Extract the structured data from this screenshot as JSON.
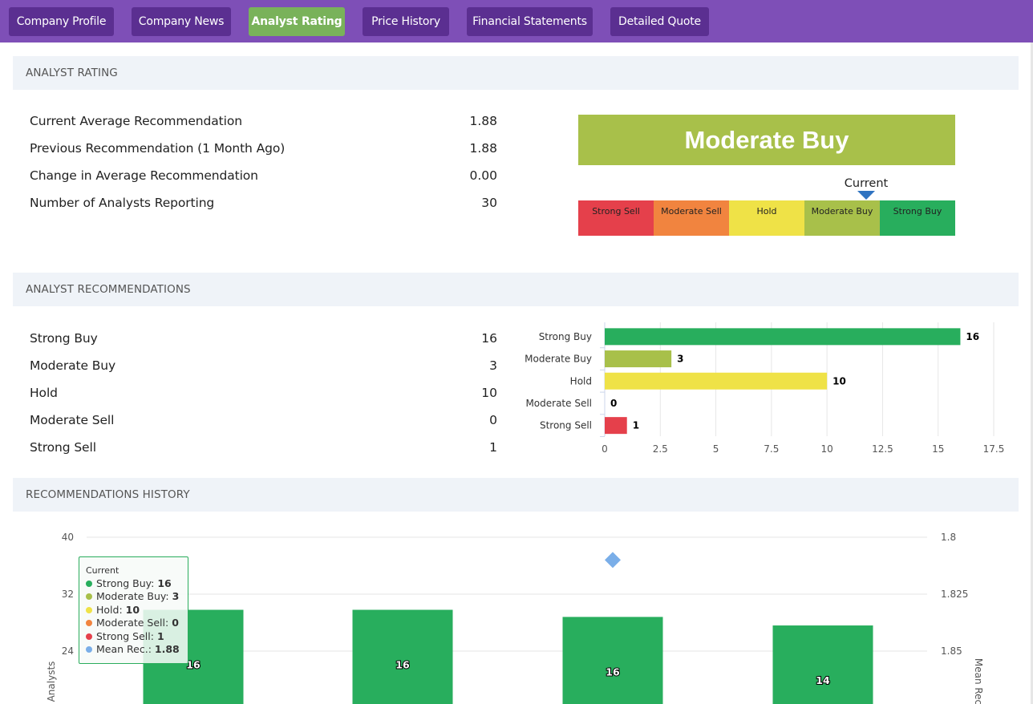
{
  "nav": {
    "tabs": [
      {
        "label": "Company Profile",
        "active": false
      },
      {
        "label": "Company News",
        "active": false
      },
      {
        "label": "Analyst Rating",
        "active": true
      },
      {
        "label": "Price History",
        "active": false
      },
      {
        "label": "Financial Statements",
        "active": false
      },
      {
        "label": "Detailed Quote",
        "active": false
      }
    ]
  },
  "analyst_rating": {
    "header": "ANALYST RATING",
    "rows": [
      {
        "label": "Current Average Recommendation",
        "value": "1.88"
      },
      {
        "label": "Previous Recommendation (1 Month Ago)",
        "value": "1.88"
      },
      {
        "label": "Change in Average Recommendation",
        "value": "0.00"
      },
      {
        "label": "Number of Analysts Reporting",
        "value": "30"
      }
    ],
    "rating_label": "Moderate Buy",
    "current_marker_label": "Current",
    "scale": [
      {
        "label": "Strong Sell",
        "color": "#e5404b"
      },
      {
        "label": "Moderate Sell",
        "color": "#f1843f"
      },
      {
        "label": "Hold",
        "color": "#efe247"
      },
      {
        "label": "Moderate Buy",
        "color": "#a8c04a"
      },
      {
        "label": "Strong Buy",
        "color": "#28ae5d"
      }
    ]
  },
  "analyst_recommendations": {
    "header": "ANALYST RECOMMENDATIONS",
    "rows": [
      {
        "label": "Strong Buy",
        "value": "16"
      },
      {
        "label": "Moderate Buy",
        "value": "3"
      },
      {
        "label": "Hold",
        "value": "10"
      },
      {
        "label": "Moderate Sell",
        "value": "0"
      },
      {
        "label": "Strong Sell",
        "value": "1"
      }
    ]
  },
  "recommendations_history": {
    "header": "RECOMMENDATIONS HISTORY",
    "tooltip": {
      "title": "Current",
      "rows": [
        {
          "label": "Strong Buy: ",
          "value": "16",
          "color": "#28ae5d"
        },
        {
          "label": "Moderate Buy: ",
          "value": "3",
          "color": "#a8c04a"
        },
        {
          "label": "Hold: ",
          "value": "10",
          "color": "#efe247"
        },
        {
          "label": "Moderate Sell: ",
          "value": "0",
          "color": "#f1843f"
        },
        {
          "label": "Strong Sell: ",
          "value": "1",
          "color": "#e5404b"
        },
        {
          "label": "Mean Rec.: ",
          "value": "1.88",
          "color": "#7aaee8"
        }
      ]
    }
  },
  "chart_data": [
    {
      "type": "bar",
      "orientation": "horizontal",
      "categories": [
        "Strong Buy",
        "Moderate Buy",
        "Hold",
        "Moderate Sell",
        "Strong Sell"
      ],
      "values": [
        16,
        3,
        10,
        0,
        1
      ],
      "colors": [
        "#28ae5d",
        "#a8c04a",
        "#efe247",
        "#f1843f",
        "#e5404b"
      ],
      "xlim": [
        0,
        17.5
      ],
      "xticks": [
        "0",
        "2.5",
        "5",
        "7.5",
        "10",
        "12.5",
        "15",
        "17.5"
      ],
      "grid": true
    },
    {
      "type": "bar",
      "categories": [
        "",
        "",
        "",
        ""
      ],
      "series": [
        {
          "values": [
            16,
            16,
            16,
            14
          ],
          "color": "#28ae5d"
        }
      ],
      "mean_rec_points": [
        1.81
      ],
      "ylabel": "Analysts",
      "y2label": "Mean Rec",
      "yticks": [
        "40",
        "32",
        "24"
      ],
      "y2ticks": [
        "1.8",
        "1.825",
        "1.85"
      ],
      "bar_tops": [
        29.8,
        29.8,
        28.8,
        27.6
      ],
      "ylim": [
        16,
        40
      ],
      "y2lim": [
        1.8,
        1.875
      ],
      "grid": true
    }
  ]
}
